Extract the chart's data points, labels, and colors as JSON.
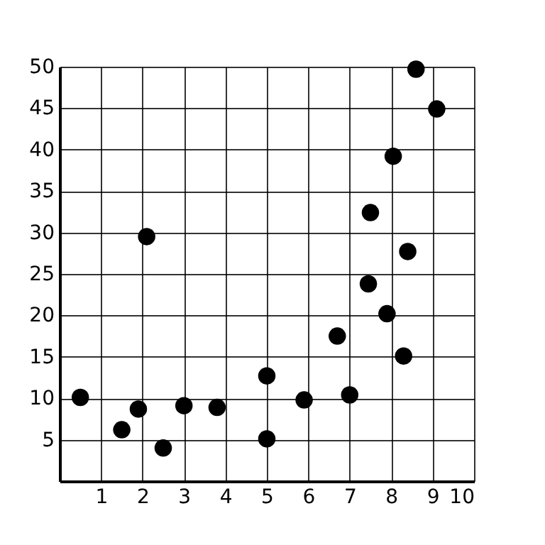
{
  "chart_data": {
    "type": "scatter",
    "x": [
      0.5,
      1.5,
      1.9,
      2.1,
      2.5,
      3.0,
      3.8,
      5.0,
      5.0,
      5.9,
      6.7,
      7.0,
      7.5,
      7.45,
      7.9,
      8.05,
      8.3,
      8.4,
      8.6,
      9.1
    ],
    "series": [
      {
        "color": "#000000",
        "values": [
          10.1,
          6.2,
          8.7,
          29.5,
          4,
          9.1,
          8.9,
          12.7,
          5.1,
          9.8,
          17.5,
          10.4,
          32.4,
          23.8,
          20.2,
          39.2,
          15.1,
          27.7,
          49.7,
          44.9
        ]
      }
    ],
    "xlim": [
      0,
      10
    ],
    "ylim": [
      0,
      50
    ],
    "xticks": [
      1,
      2,
      3,
      4,
      5,
      6,
      7,
      8,
      9,
      10
    ],
    "yticks": [
      5,
      10,
      15,
      20,
      25,
      30,
      35,
      40,
      45,
      50
    ],
    "grid": true,
    "marker": "circle"
  }
}
